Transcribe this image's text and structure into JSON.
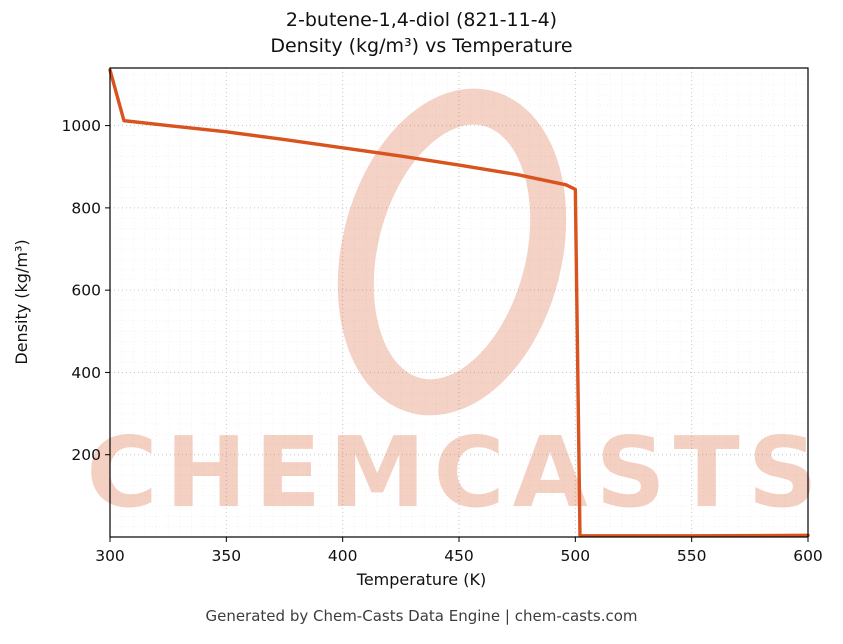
{
  "page": {
    "footer": "Generated by Chem-Casts Data Engine | chem-casts.com"
  },
  "watermark": {
    "text": "CHEMCASTS",
    "logo": "brush-ring-logo",
    "color": "#d65021"
  },
  "chart_data": {
    "type": "line",
    "title": "2-butene-1,4-diol (821-11-4)",
    "subtitle": "Density (kg/m³) vs Temperature",
    "xlabel": "Temperature (K)",
    "ylabel": "Density (kg/m³)",
    "xlim": [
      300,
      600
    ],
    "ylim": [
      0,
      1140
    ],
    "xticks": [
      300,
      350,
      400,
      450,
      500,
      550,
      600
    ],
    "yticks": [
      200,
      400,
      600,
      800,
      1000
    ],
    "grid": true,
    "legend": false,
    "line_color": "#d9531f",
    "series": [
      {
        "name": "Density (kg/m³)",
        "points": [
          [
            300,
            1135
          ],
          [
            306,
            1012
          ],
          [
            325,
            1000
          ],
          [
            350,
            985
          ],
          [
            375,
            966
          ],
          [
            400,
            946
          ],
          [
            425,
            926
          ],
          [
            450,
            904
          ],
          [
            475,
            881
          ],
          [
            496,
            856
          ],
          [
            500,
            845
          ],
          [
            502,
            3
          ],
          [
            520,
            3
          ],
          [
            550,
            3
          ],
          [
            600,
            4
          ]
        ]
      }
    ]
  }
}
